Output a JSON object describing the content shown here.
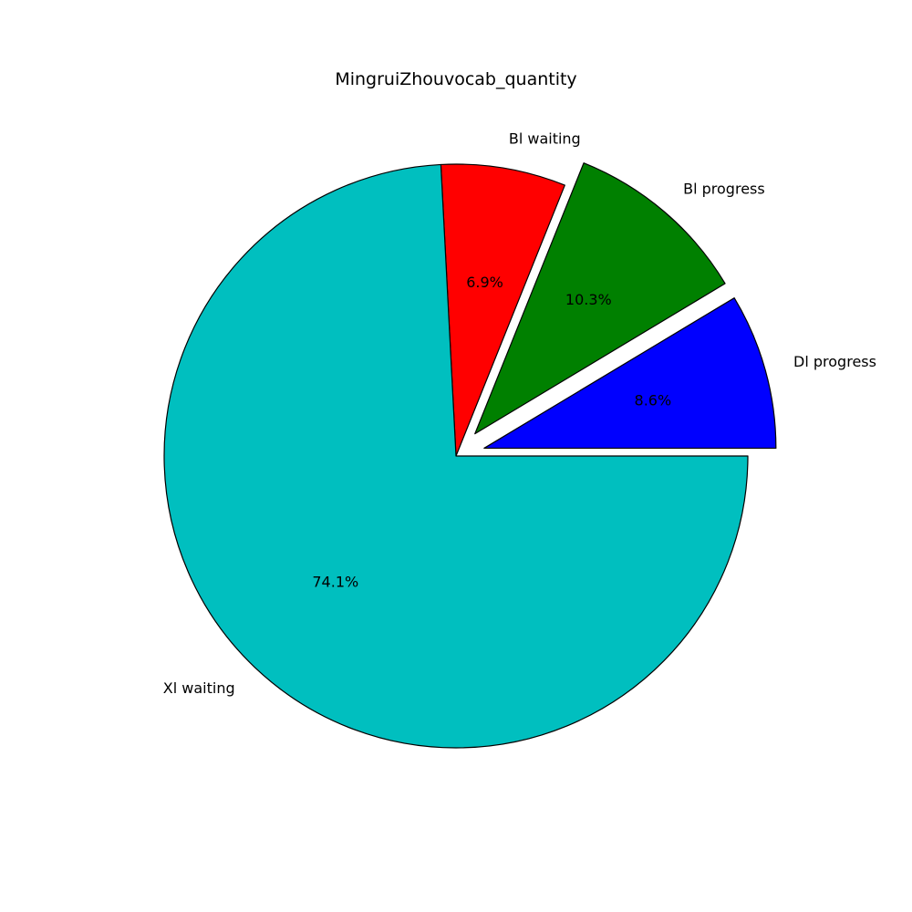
{
  "chart_data": {
    "type": "pie",
    "title": "MingruiZhouvocab_quantity",
    "categories": [
      "Dl progress",
      "Bl progress",
      "Bl waiting",
      "Xl waiting"
    ],
    "values": [
      8.6,
      10.3,
      6.9,
      74.1
    ],
    "percent_labels": [
      "8.6%",
      "10.3%",
      "6.9%",
      "74.1%"
    ],
    "colors": [
      "#0000ff",
      "#008000",
      "#ff0000",
      "#00bfbf"
    ],
    "explode": [
      0.1,
      0.1,
      0,
      0
    ],
    "start_angle": 0,
    "direction": "counterclockwise",
    "legend": "none"
  }
}
